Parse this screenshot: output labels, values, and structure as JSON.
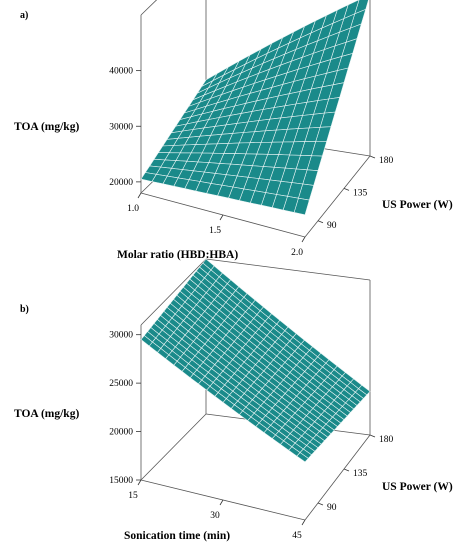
{
  "figure": {
    "panels": [
      "a)",
      "b)"
    ]
  },
  "chart_data": [
    {
      "type": "surface3d",
      "panel": "a)",
      "zlabel": "TOA (mg/kg)",
      "xlabel": "Molar ratio (HBD:HBA)",
      "ylabel": "US Power (W)",
      "x_ticks": [
        "1.0",
        "1.5",
        "2.0"
      ],
      "y_ticks": [
        "90",
        "135",
        "180"
      ],
      "z_ticks": [
        "20000",
        "30000",
        "40000"
      ],
      "xlim": [
        1.0,
        2.0
      ],
      "ylim": [
        67.5,
        180
      ],
      "zlim": [
        18000,
        50000
      ],
      "corner_values": {
        "x_min_y_min": 20500,
        "x_max_y_min": 22000,
        "x_min_y_max": 27000,
        "x_max_y_max": 47000
      },
      "surface_color": "#1a8a8a",
      "grid_lines": 15
    },
    {
      "type": "surface3d",
      "panel": "b)",
      "zlabel": "TOA (mg/kg)",
      "xlabel": "Sonication time (min)",
      "ylabel": "US Power (W)",
      "x_ticks": [
        "15",
        "30",
        "45"
      ],
      "y_ticks": [
        "90",
        "135",
        "180"
      ],
      "z_ticks": [
        "15000",
        "20000",
        "25000",
        "30000"
      ],
      "xlim": [
        15,
        45
      ],
      "ylim": [
        67.5,
        180
      ],
      "zlim": [
        15000,
        31000
      ],
      "corner_values": {
        "x_min_y_min": 29500,
        "x_max_y_min": 21000,
        "x_min_y_max": 31000,
        "x_max_y_max": 19500
      },
      "surface_color": "#1a8a8a",
      "grid_lines": 20
    }
  ]
}
